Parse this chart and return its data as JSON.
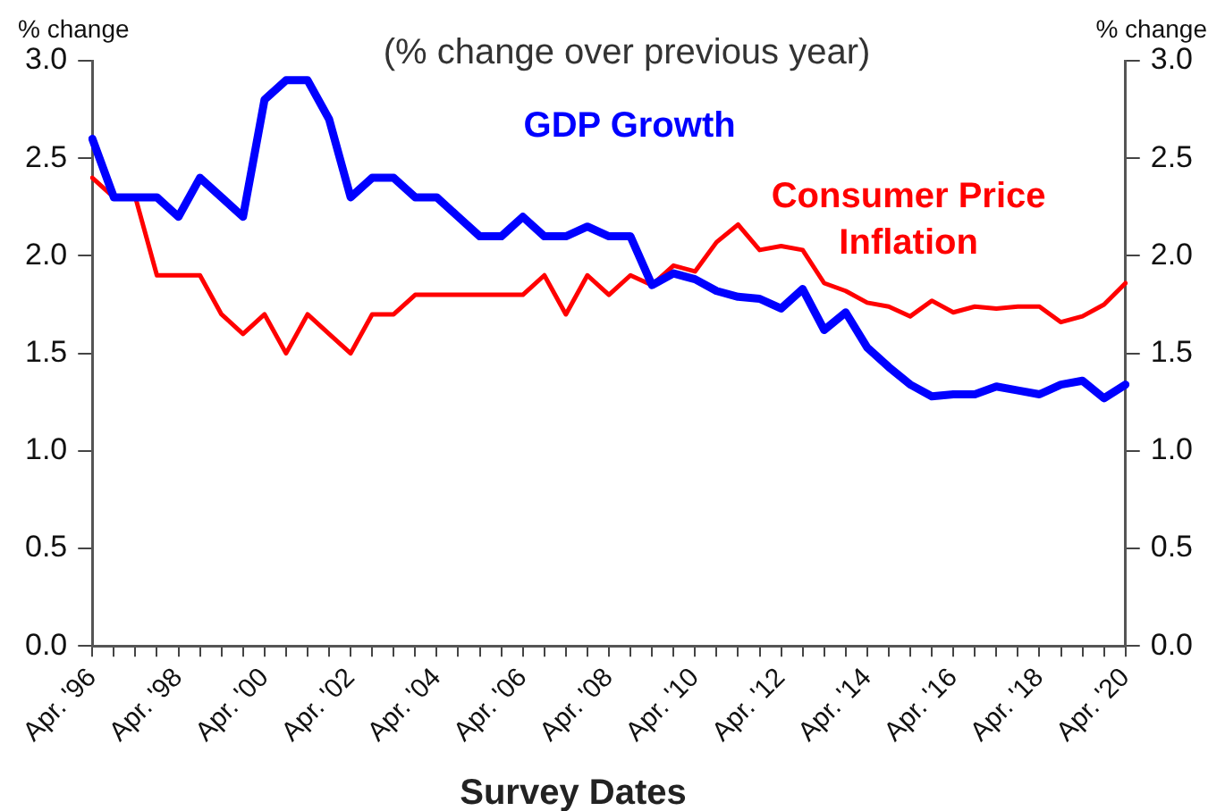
{
  "chart_data": {
    "type": "line",
    "subtitle": "(% change over previous year)",
    "xlabel": "Survey Dates",
    "ylabel": "% change",
    "y2label": "% change",
    "categories": [
      "Apr. '96",
      null,
      null,
      null,
      "Apr. '98",
      null,
      null,
      null,
      "Apr. '00",
      null,
      null,
      null,
      "Apr. '02",
      null,
      null,
      null,
      "Apr. '04",
      null,
      null,
      null,
      "Apr. '06",
      null,
      null,
      null,
      "Apr. '08",
      null,
      null,
      null,
      "Apr. '10",
      null,
      null,
      null,
      "Apr. '12",
      null,
      null,
      null,
      "Apr. '14",
      null,
      null,
      null,
      "Apr. '16",
      null,
      null,
      null,
      "Apr. '18",
      null,
      null,
      null,
      "Apr. '20"
    ],
    "series": [
      {
        "name": "GDP Growth",
        "color": "#0000ff",
        "values": [
          2.6,
          2.3,
          2.3,
          2.3,
          2.2,
          2.4,
          2.3,
          2.2,
          2.8,
          2.9,
          2.9,
          2.7,
          2.3,
          2.4,
          2.4,
          2.3,
          2.3,
          2.2,
          2.1,
          2.1,
          2.2,
          2.1,
          2.1,
          2.15,
          2.1,
          2.1,
          1.85,
          1.91,
          1.88,
          1.82,
          1.79,
          1.78,
          1.73,
          1.83,
          1.62,
          1.71,
          1.53,
          1.43,
          1.34,
          1.28,
          1.29,
          1.29,
          1.33,
          1.31,
          1.29,
          1.34,
          1.36,
          1.27,
          1.34
        ]
      },
      {
        "name": "Consumer Price Inflation",
        "color": "#ff0000",
        "values": [
          2.4,
          2.3,
          2.3,
          1.9,
          1.9,
          1.9,
          1.7,
          1.6,
          1.7,
          1.5,
          1.7,
          1.6,
          1.5,
          1.7,
          1.7,
          1.8,
          1.8,
          1.8,
          1.8,
          1.8,
          1.8,
          1.9,
          1.7,
          1.9,
          1.8,
          1.9,
          1.85,
          1.95,
          1.92,
          2.07,
          2.16,
          2.03,
          2.05,
          2.03,
          1.86,
          1.82,
          1.76,
          1.74,
          1.69,
          1.77,
          1.71,
          1.74,
          1.73,
          1.74,
          1.74,
          1.66,
          1.69,
          1.75,
          1.86
        ]
      }
    ],
    "ylim": [
      0,
      3
    ],
    "yticks": [
      {
        "value": 0,
        "label": "0.0"
      },
      {
        "value": 0.5,
        "label": "0.5"
      },
      {
        "value": 1,
        "label": "1.0"
      },
      {
        "value": 1.5,
        "label": "1.5"
      },
      {
        "value": 2,
        "label": "2.0"
      },
      {
        "value": 2.5,
        "label": "2.5"
      },
      {
        "value": 3,
        "label": "3.0"
      }
    ],
    "y2lim": [
      0,
      3
    ],
    "y2ticks": [
      {
        "value": 0,
        "label": "0.0"
      },
      {
        "value": 0.5,
        "label": "0.5"
      },
      {
        "value": 1,
        "label": "1.0"
      },
      {
        "value": 1.5,
        "label": "1.5"
      },
      {
        "value": 2,
        "label": "2.0"
      },
      {
        "value": 2.5,
        "label": "2.5"
      },
      {
        "value": 3,
        "label": "3.0"
      }
    ],
    "grid": false,
    "legend": false,
    "marker": "none",
    "line_style": "solid"
  }
}
